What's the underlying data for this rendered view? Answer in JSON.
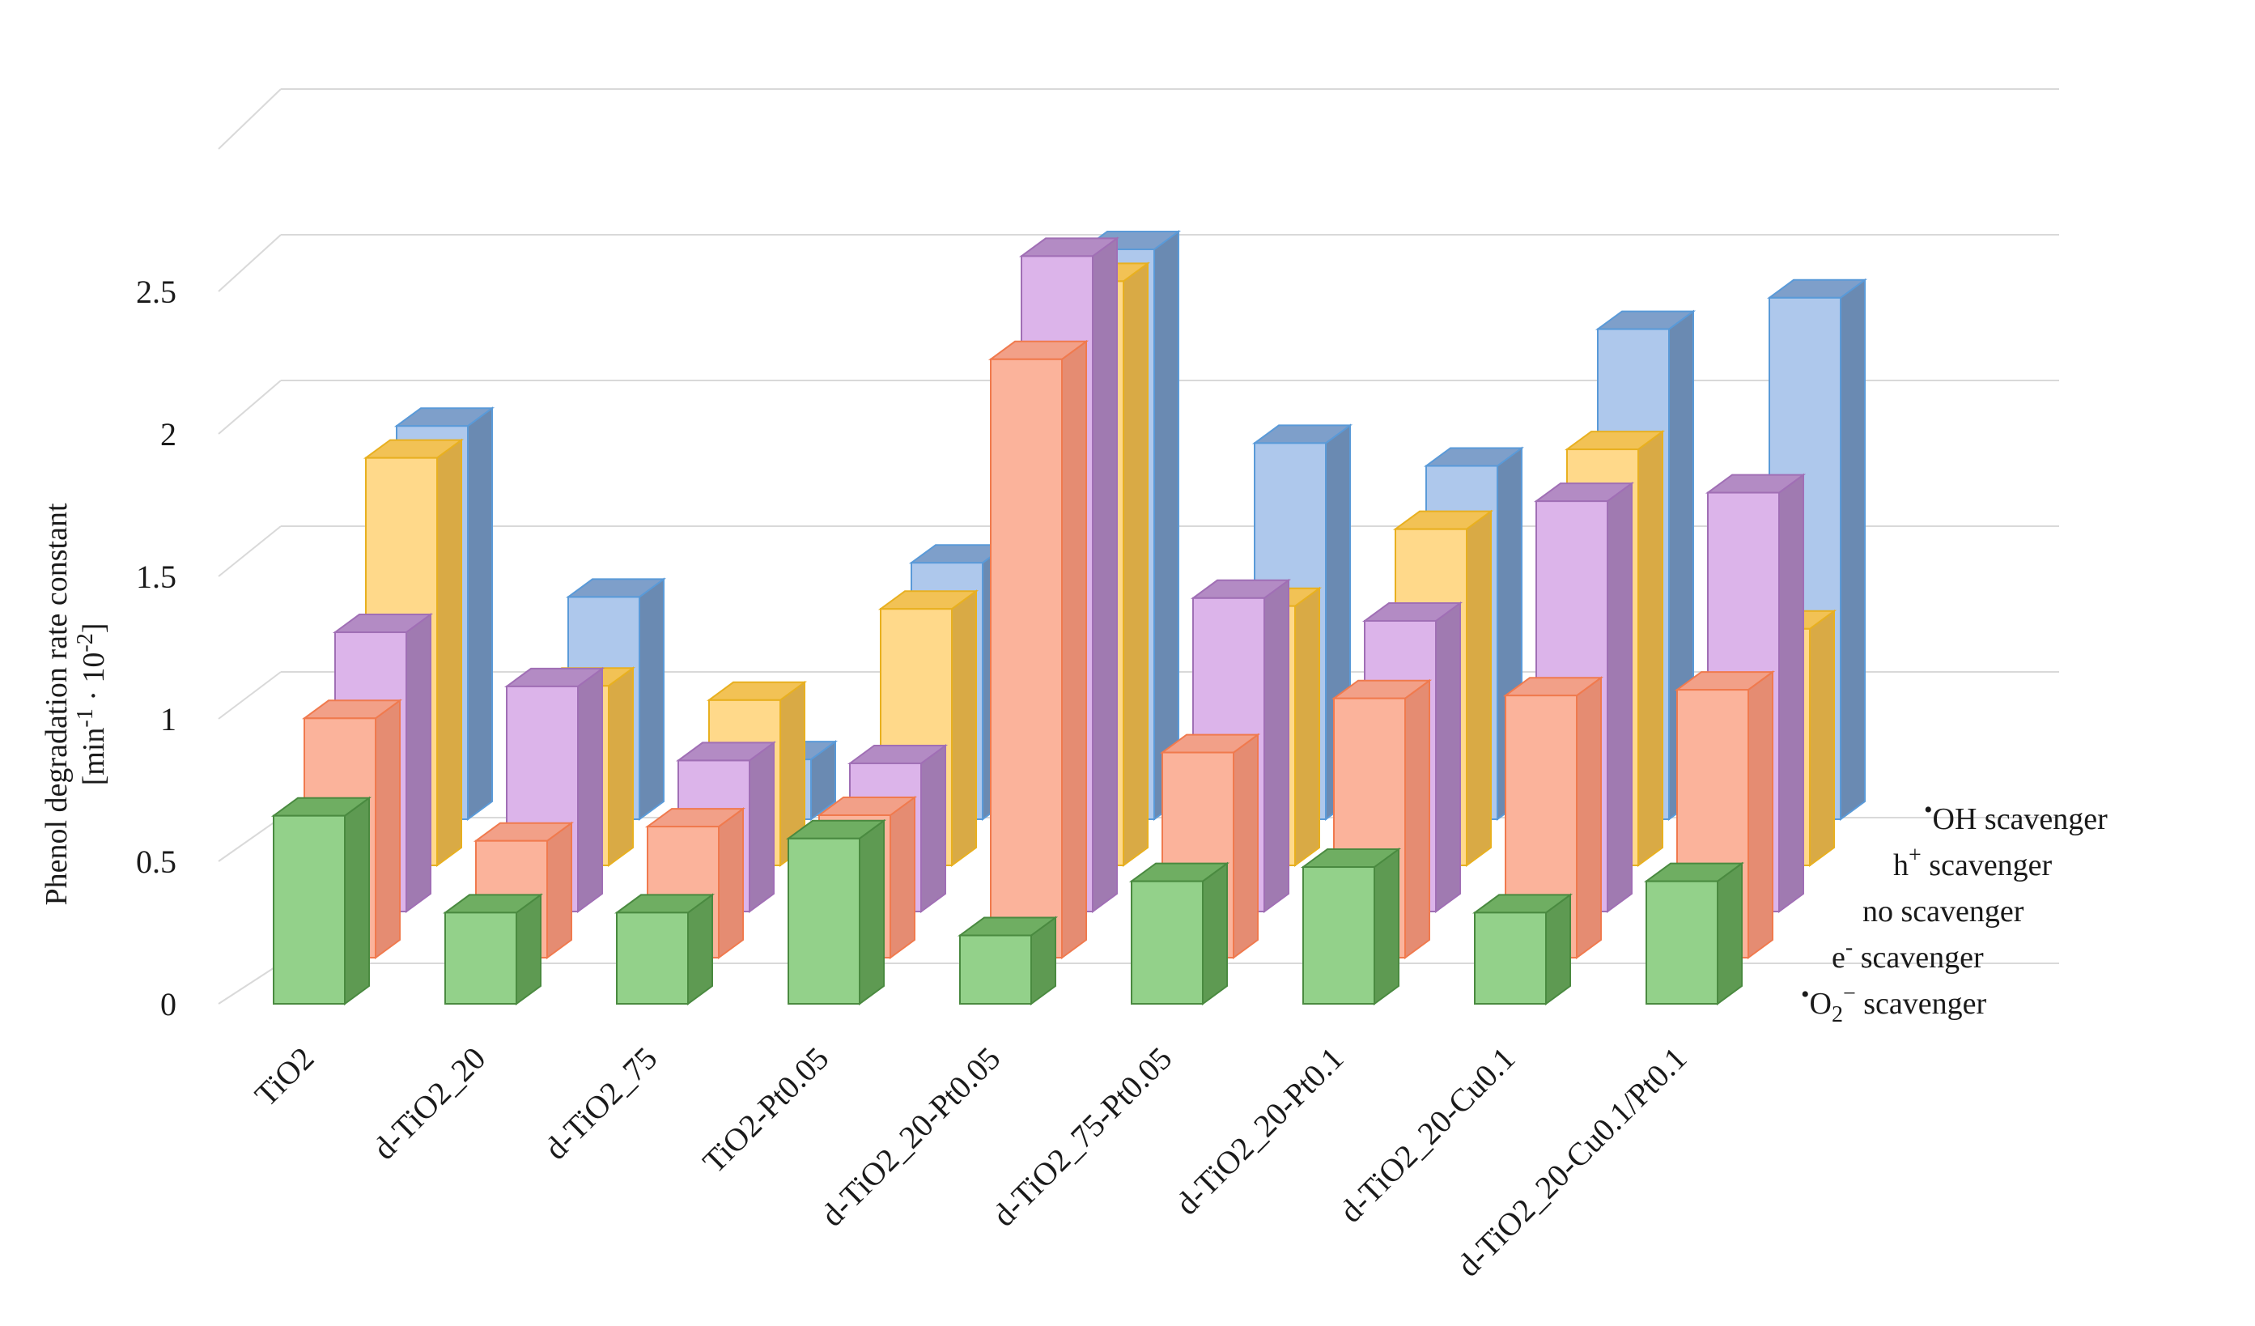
{
  "chart_data": {
    "type": "bar3d",
    "title": "",
    "ylabel": "Phenol degradation rate constant",
    "ylabel_line2": "[min-1 · 10-2]",
    "ylabel_line2_parts": [
      "[min",
      "-1",
      " · 10",
      "-2",
      "]"
    ],
    "ylim": [
      0,
      3
    ],
    "yticks": [
      {
        "value": 0,
        "label": "0"
      },
      {
        "value": 0.5,
        "label": "0.5"
      },
      {
        "value": 1,
        "label": "1"
      },
      {
        "value": 1.5,
        "label": "1.5"
      },
      {
        "value": 2,
        "label": "2"
      },
      {
        "value": 2.5,
        "label": "2.5"
      }
    ],
    "grid": true,
    "categories": [
      "TiO2",
      "d-TiO2_20",
      "d-TiO2_75",
      "TiO2-Pt0.05",
      "d-TiO2_20-Pt0.05",
      "d-TiO2_75-Pt0.05",
      "d-TiO2_20-Pt0.1",
      "d-TiO2_20-Cu0.1",
      "d-TiO2_20-Cu0.1/Pt0.1"
    ],
    "series": [
      {
        "name": "•O2− scavenger",
        "label_parts": [
          "•",
          "O",
          "2",
          "−",
          " scavenger"
        ],
        "values": [
          0.66,
          0.32,
          0.32,
          0.58,
          0.24,
          0.43,
          0.48,
          0.32,
          0.43
        ],
        "colors": {
          "front": "#93d18a",
          "top": "#6fae62",
          "side": "#5e9a52",
          "edge": "#4a8a40"
        }
      },
      {
        "name": "e- scavenger",
        "label_parts": [
          "e",
          "-",
          " scavenger"
        ],
        "values": [
          0.84,
          0.41,
          0.46,
          0.5,
          2.1,
          0.72,
          0.91,
          0.92,
          0.94
        ],
        "colors": {
          "front": "#fbb39b",
          "top": "#f2a088",
          "side": "#e58c72",
          "edge": "#f07a4e"
        }
      },
      {
        "name": "no scavenger",
        "label_parts": [
          "no scavenger"
        ],
        "values": [
          0.98,
          0.79,
          0.53,
          0.52,
          2.3,
          1.1,
          1.02,
          1.44,
          1.47
        ],
        "colors": {
          "front": "#dcb4ea",
          "top": "#b38bc4",
          "side": "#a07ab1",
          "edge": "#a06fb5"
        }
      },
      {
        "name": "h+ scavenger",
        "label_parts": [
          "h",
          "+",
          " scavenger"
        ],
        "values": [
          1.43,
          0.63,
          0.58,
          0.9,
          2.05,
          0.91,
          1.18,
          1.46,
          0.83
        ],
        "colors": {
          "front": "#ffd98a",
          "top": "#f2c255",
          "side": "#d9aa45",
          "edge": "#e8b020"
        }
      },
      {
        "name": "•OH scavenger",
        "label_parts": [
          "•",
          "OH scavenger"
        ],
        "values": [
          1.38,
          0.78,
          0.21,
          0.9,
          2.0,
          1.32,
          1.24,
          1.72,
          1.83
        ],
        "colors": {
          "front": "#aec8ec",
          "top": "#7e9fca",
          "side": "#6a8ab2",
          "edge": "#5a9ad8"
        }
      }
    ]
  }
}
